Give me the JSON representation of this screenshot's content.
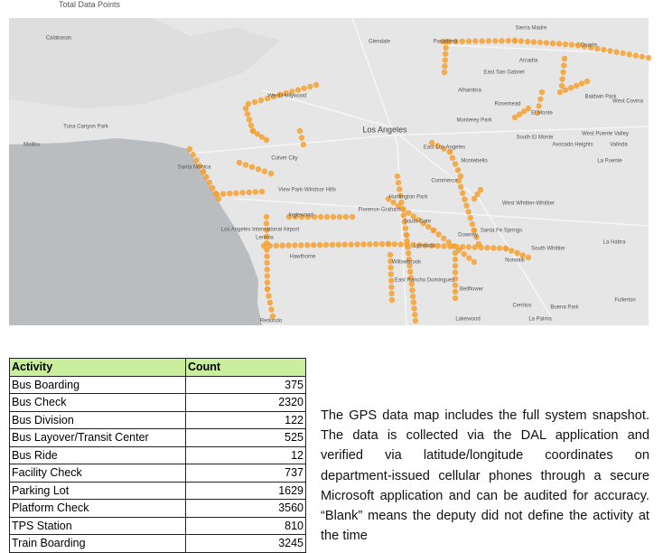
{
  "header": {
    "caption": "Total Data Points"
  },
  "map": {
    "labels": [
      "Calabasas",
      "Glendale",
      "Pasadena",
      "Sierra Madre",
      "Duarte",
      "Arcadia",
      "East San Gabriel",
      "Alhambra",
      "Rosemead",
      "El Monte",
      "Baldwin Park",
      "West Covina",
      "Monterey Park",
      "South El Monte",
      "Avocado Heights",
      "West Puente Valley",
      "Valinda",
      "La Puente",
      "Los Angeles",
      "East Los Angeles",
      "Montebello",
      "West Hollywood",
      "Culver City",
      "Santa Monica",
      "Malibu",
      "Tuna Canyon Park",
      "Commerce",
      "View Park-Windsor Hills",
      "Huntington Park",
      "Florence-Graham",
      "South Gate",
      "Inglewood",
      "Downey",
      "Santa Fe Springs",
      "West Whittier-Whittier",
      "South Whittier",
      "La Habra",
      "Lennox",
      "Hawthorne",
      "Lynwood",
      "Willowbrook",
      "East Rancho Dominguez",
      "Norwalk",
      "Bellflower",
      "Cerritos",
      "Buena Park",
      "Fullerton",
      "Lakewood",
      "La Palma",
      "Redondo",
      "Los Angeles International Airport"
    ]
  },
  "table": {
    "header": [
      "Activity",
      "Count"
    ],
    "rows": [
      [
        "Bus Boarding",
        375
      ],
      [
        "Bus Check",
        2320
      ],
      [
        "Bus Division",
        122
      ],
      [
        "Bus Layover/Transit Center",
        525
      ],
      [
        "Bus Ride",
        12
      ],
      [
        "Facility Check",
        737
      ],
      [
        "Parking Lot",
        1629
      ],
      [
        "Platform Check",
        3560
      ],
      [
        "TPS Station",
        810
      ],
      [
        "Train Boarding",
        3245
      ]
    ]
  },
  "paragraph": "The GPS data map includes the full system snapshot. The data is collected via the DAL application and verified via latitude/longitude coordinates on department-issued cellular phones through a secure Microsoft application and can be audited for accuracy. “Blank” means the deputy did not define the activity at the time"
}
